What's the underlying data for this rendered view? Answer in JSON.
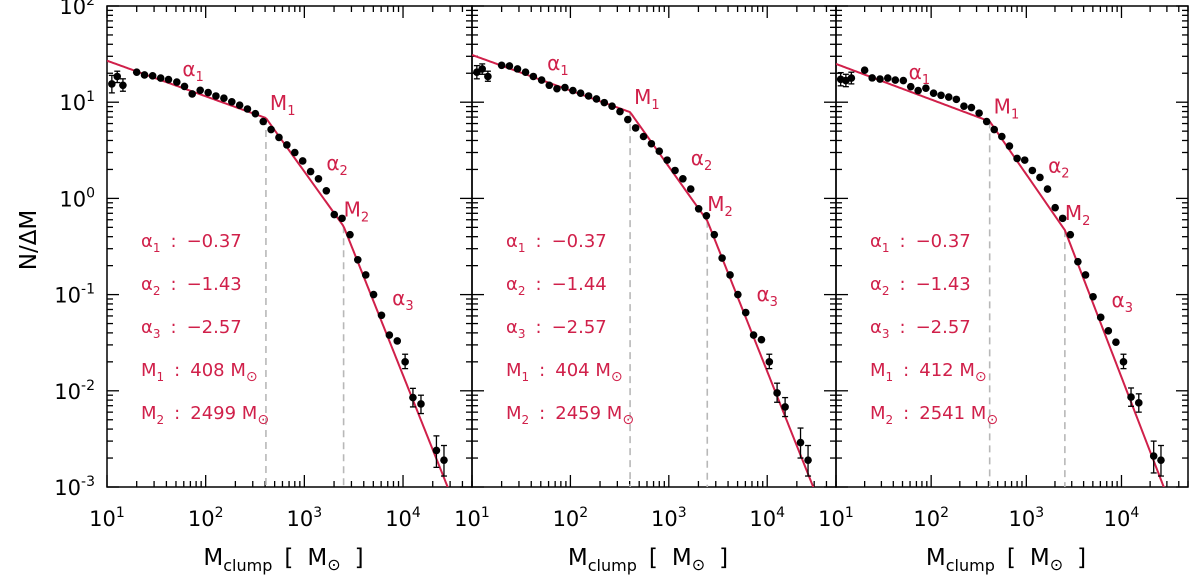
{
  "chart_data": {
    "type": "scatter",
    "scale": "log-log",
    "xlabel_main": "M",
    "xlabel_sub": "clump",
    "xlabel_open": "[",
    "xlabel_unit": "M",
    "xlabel_close": "]",
    "ylabel": "N/ΔM",
    "xlim": [
      10,
      50000
    ],
    "ylim": [
      0.001,
      100
    ],
    "x_ticks": [
      {
        "value": 10,
        "base": "10",
        "exp": "1"
      },
      {
        "value": 100,
        "base": "10",
        "exp": "2"
      },
      {
        "value": 1000,
        "base": "10",
        "exp": "3"
      },
      {
        "value": 10000,
        "base": "10",
        "exp": "4"
      }
    ],
    "y_ticks": [
      {
        "value": 100,
        "base": "10",
        "exp": "2"
      },
      {
        "value": 10,
        "base": "10",
        "exp": "1"
      },
      {
        "value": 1,
        "base": "10",
        "exp": "0"
      },
      {
        "value": 0.1,
        "base": "10",
        "exp": "-1"
      },
      {
        "value": 0.01,
        "base": "10",
        "exp": "-2"
      },
      {
        "value": 0.001,
        "base": "10",
        "exp": "-3"
      }
    ],
    "symbol_sun": "⊙",
    "alpha_symbol": "α",
    "mass_symbol": "M",
    "colon": ":",
    "colors": {
      "fit": "#d0204a",
      "points": "#000000",
      "guides": "#b8b8b8"
    },
    "panels": [
      {
        "params": [
          {
            "sym": "α",
            "sub": "1",
            "value": "−0.37",
            "unit": ""
          },
          {
            "sym": "α",
            "sub": "2",
            "value": "−1.43",
            "unit": ""
          },
          {
            "sym": "α",
            "sub": "3",
            "value": "−2.57",
            "unit": ""
          },
          {
            "sym": "M",
            "sub": "1",
            "value": "408 M",
            "unit": "⊙"
          },
          {
            "sym": "M",
            "sub": "2",
            "value": "2499 M",
            "unit": "⊙"
          }
        ],
        "fit": {
          "alpha1": -0.37,
          "alpha2": -1.43,
          "alpha3": -2.57,
          "M1": 408,
          "M2": 2499,
          "y_at_10": 27
        },
        "points": [
          {
            "x": 11.2,
            "y": 15.5,
            "lo": 12.5,
            "hi": 19
          },
          {
            "x": 12.7,
            "y": 18.5,
            "lo": 16,
            "hi": 21
          },
          {
            "x": 14.5,
            "y": 15,
            "lo": 13,
            "hi": 17.5
          },
          {
            "x": 20,
            "y": 20.5
          },
          {
            "x": 24,
            "y": 19.2
          },
          {
            "x": 29,
            "y": 18.8
          },
          {
            "x": 35,
            "y": 17.8
          },
          {
            "x": 42,
            "y": 17.2
          },
          {
            "x": 51,
            "y": 16.2
          },
          {
            "x": 61,
            "y": 14.6
          },
          {
            "x": 73,
            "y": 12.2
          },
          {
            "x": 88,
            "y": 13.3
          },
          {
            "x": 106,
            "y": 12.6
          },
          {
            "x": 127,
            "y": 11.6
          },
          {
            "x": 153,
            "y": 11.0
          },
          {
            "x": 184,
            "y": 10.1
          },
          {
            "x": 221,
            "y": 9.3
          },
          {
            "x": 265,
            "y": 8.5
          },
          {
            "x": 319,
            "y": 7.6
          },
          {
            "x": 383,
            "y": 6.3
          },
          {
            "x": 460,
            "y": 5.2
          },
          {
            "x": 553,
            "y": 4.3
          },
          {
            "x": 665,
            "y": 3.6
          },
          {
            "x": 800,
            "y": 3.0
          },
          {
            "x": 962,
            "y": 2.45
          },
          {
            "x": 1157,
            "y": 1.9
          },
          {
            "x": 1390,
            "y": 1.6
          },
          {
            "x": 1670,
            "y": 1.2
          },
          {
            "x": 2010,
            "y": 0.68
          },
          {
            "x": 2410,
            "y": 0.62
          },
          {
            "x": 2900,
            "y": 0.42
          },
          {
            "x": 3480,
            "y": 0.23
          },
          {
            "x": 4190,
            "y": 0.16
          },
          {
            "x": 5030,
            "y": 0.1
          },
          {
            "x": 6050,
            "y": 0.061
          },
          {
            "x": 7270,
            "y": 0.038
          },
          {
            "x": 8740,
            "y": 0.033
          },
          {
            "x": 10500,
            "y": 0.02,
            "lo": 0.017,
            "hi": 0.024
          },
          {
            "x": 12600,
            "y": 0.0085,
            "lo": 0.0068,
            "hi": 0.0106
          },
          {
            "x": 15200,
            "y": 0.0073,
            "lo": 0.0058,
            "hi": 0.009
          },
          {
            "x": 21800,
            "y": 0.0024,
            "lo": 0.0016,
            "hi": 0.0034
          },
          {
            "x": 26000,
            "y": 0.0019,
            "lo": 0.0013,
            "hi": 0.0027
          }
        ]
      },
      {
        "params": [
          {
            "sym": "α",
            "sub": "1",
            "value": "−0.37",
            "unit": ""
          },
          {
            "sym": "α",
            "sub": "2",
            "value": "−1.44",
            "unit": ""
          },
          {
            "sym": "α",
            "sub": "3",
            "value": "−2.57",
            "unit": ""
          },
          {
            "sym": "M",
            "sub": "1",
            "value": "404 M",
            "unit": "⊙"
          },
          {
            "sym": "M",
            "sub": "2",
            "value": "2459 M",
            "unit": "⊙"
          }
        ],
        "fit": {
          "alpha1": -0.37,
          "alpha2": -1.44,
          "alpha3": -2.57,
          "M1": 404,
          "M2": 2459,
          "y_at_10": 31
        },
        "points": [
          {
            "x": 11.2,
            "y": 20.5,
            "lo": 17.5,
            "hi": 24
          },
          {
            "x": 12.7,
            "y": 22.2,
            "lo": 19.5,
            "hi": 25
          },
          {
            "x": 14.5,
            "y": 18.5,
            "lo": 16.5,
            "hi": 21
          },
          {
            "x": 20,
            "y": 24.2
          },
          {
            "x": 24,
            "y": 23.8
          },
          {
            "x": 29,
            "y": 22.2
          },
          {
            "x": 35,
            "y": 20.5
          },
          {
            "x": 42,
            "y": 18.5
          },
          {
            "x": 51,
            "y": 17.0
          },
          {
            "x": 61,
            "y": 15.0
          },
          {
            "x": 73,
            "y": 13.8
          },
          {
            "x": 88,
            "y": 14.2
          },
          {
            "x": 106,
            "y": 13.2
          },
          {
            "x": 127,
            "y": 12.4
          },
          {
            "x": 153,
            "y": 11.6
          },
          {
            "x": 184,
            "y": 10.8
          },
          {
            "x": 221,
            "y": 9.9
          },
          {
            "x": 265,
            "y": 9.1
          },
          {
            "x": 319,
            "y": 8.0
          },
          {
            "x": 383,
            "y": 6.6
          },
          {
            "x": 460,
            "y": 5.4
          },
          {
            "x": 553,
            "y": 4.4
          },
          {
            "x": 665,
            "y": 3.7
          },
          {
            "x": 800,
            "y": 3.1
          },
          {
            "x": 962,
            "y": 2.5
          },
          {
            "x": 1157,
            "y": 1.95
          },
          {
            "x": 1390,
            "y": 1.6
          },
          {
            "x": 1670,
            "y": 1.25
          },
          {
            "x": 2010,
            "y": 0.78
          },
          {
            "x": 2410,
            "y": 0.66
          },
          {
            "x": 2900,
            "y": 0.42
          },
          {
            "x": 3480,
            "y": 0.24
          },
          {
            "x": 4190,
            "y": 0.16
          },
          {
            "x": 5030,
            "y": 0.1
          },
          {
            "x": 6050,
            "y": 0.065
          },
          {
            "x": 7270,
            "y": 0.038
          },
          {
            "x": 8740,
            "y": 0.034
          },
          {
            "x": 10500,
            "y": 0.02,
            "lo": 0.017,
            "hi": 0.024
          },
          {
            "x": 12600,
            "y": 0.0095,
            "lo": 0.0076,
            "hi": 0.012
          },
          {
            "x": 15200,
            "y": 0.0068,
            "lo": 0.0054,
            "hi": 0.0085
          },
          {
            "x": 21800,
            "y": 0.0029,
            "lo": 0.002,
            "hi": 0.0041
          },
          {
            "x": 26000,
            "y": 0.0019,
            "lo": 0.0013,
            "hi": 0.0027
          }
        ]
      },
      {
        "params": [
          {
            "sym": "α",
            "sub": "1",
            "value": "−0.37",
            "unit": ""
          },
          {
            "sym": "α",
            "sub": "2",
            "value": "−1.43",
            "unit": ""
          },
          {
            "sym": "α",
            "sub": "3",
            "value": "−2.57",
            "unit": ""
          },
          {
            "sym": "M",
            "sub": "1",
            "value": "412 M",
            "unit": "⊙"
          },
          {
            "sym": "M",
            "sub": "2",
            "value": "2541 M",
            "unit": "⊙"
          }
        ],
        "fit": {
          "alpha1": -0.37,
          "alpha2": -1.43,
          "alpha3": -2.57,
          "M1": 412,
          "M2": 2541,
          "y_at_10": 25
        },
        "points": [
          {
            "x": 11.2,
            "y": 17.3,
            "lo": 14.8,
            "hi": 20.3
          },
          {
            "x": 12.7,
            "y": 16.8,
            "lo": 14.5,
            "hi": 19.5
          },
          {
            "x": 14.5,
            "y": 17.8,
            "lo": 15.5,
            "hi": 20.5
          },
          {
            "x": 20,
            "y": 21.5
          },
          {
            "x": 24,
            "y": 17.9
          },
          {
            "x": 29,
            "y": 17.4
          },
          {
            "x": 35,
            "y": 17.8
          },
          {
            "x": 42,
            "y": 17.0
          },
          {
            "x": 51,
            "y": 16.8
          },
          {
            "x": 61,
            "y": 14.5
          },
          {
            "x": 73,
            "y": 13.2
          },
          {
            "x": 88,
            "y": 14.0
          },
          {
            "x": 106,
            "y": 12.4
          },
          {
            "x": 127,
            "y": 11.8
          },
          {
            "x": 153,
            "y": 11.3
          },
          {
            "x": 184,
            "y": 10.7
          },
          {
            "x": 221,
            "y": 9.1
          },
          {
            "x": 265,
            "y": 8.8
          },
          {
            "x": 319,
            "y": 7.7
          },
          {
            "x": 383,
            "y": 6.3
          },
          {
            "x": 460,
            "y": 5.2
          },
          {
            "x": 553,
            "y": 4.4
          },
          {
            "x": 665,
            "y": 3.5
          },
          {
            "x": 800,
            "y": 2.6
          },
          {
            "x": 962,
            "y": 2.5
          },
          {
            "x": 1157,
            "y": 1.95
          },
          {
            "x": 1390,
            "y": 1.65
          },
          {
            "x": 1670,
            "y": 1.25
          },
          {
            "x": 2010,
            "y": 0.8
          },
          {
            "x": 2410,
            "y": 0.62
          },
          {
            "x": 2900,
            "y": 0.42
          },
          {
            "x": 3480,
            "y": 0.22
          },
          {
            "x": 4190,
            "y": 0.16
          },
          {
            "x": 5030,
            "y": 0.095
          },
          {
            "x": 6050,
            "y": 0.058
          },
          {
            "x": 7270,
            "y": 0.042
          },
          {
            "x": 8740,
            "y": 0.032
          },
          {
            "x": 10500,
            "y": 0.02,
            "lo": 0.017,
            "hi": 0.024
          },
          {
            "x": 12600,
            "y": 0.0086,
            "lo": 0.0069,
            "hi": 0.0107
          },
          {
            "x": 15200,
            "y": 0.0075,
            "lo": 0.006,
            "hi": 0.0093
          },
          {
            "x": 21800,
            "y": 0.0021,
            "lo": 0.0014,
            "hi": 0.003
          },
          {
            "x": 26000,
            "y": 0.0019,
            "lo": 0.0013,
            "hi": 0.0027
          }
        ]
      }
    ]
  }
}
